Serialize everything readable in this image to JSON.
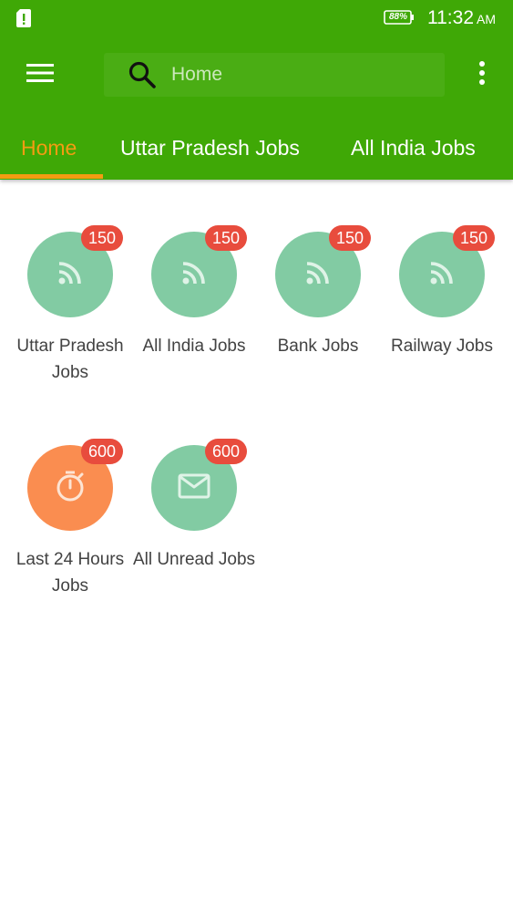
{
  "status_bar": {
    "battery": "88%",
    "time": "11:32",
    "ampm": "AM",
    "icons": [
      "sim-alert-icon",
      "battery-icon"
    ]
  },
  "toolbar": {
    "menu_icon": "hamburger-menu-icon",
    "search_icon": "search-icon",
    "search_value": "Home",
    "more_icon": "more-vertical-icon"
  },
  "tabs": [
    {
      "label": "Home",
      "active": true
    },
    {
      "label": "Uttar Pradesh Jobs",
      "active": false
    },
    {
      "label": "All India Jobs",
      "active": false
    }
  ],
  "categories": [
    {
      "label": "Uttar Pradesh Jobs",
      "count": "150",
      "icon": "rss-feed-icon",
      "color": "#82cba3"
    },
    {
      "label": "All India Jobs",
      "count": "150",
      "icon": "rss-feed-icon",
      "color": "#82cba3"
    },
    {
      "label": "Bank Jobs",
      "count": "150",
      "icon": "rss-feed-icon",
      "color": "#82cba3"
    },
    {
      "label": "Railway Jobs",
      "count": "150",
      "icon": "rss-feed-icon",
      "color": "#82cba3"
    },
    {
      "label": "Last 24 Hours Jobs",
      "count": "600",
      "icon": "stopwatch-icon",
      "color": "#fa8d50"
    },
    {
      "label": "All Unread Jobs",
      "count": "600",
      "icon": "mail-icon",
      "color": "#82cba3"
    }
  ],
  "colors": {
    "appbar": "#3fa806",
    "accent": "#f39c12",
    "badge": "#e84c3d"
  }
}
